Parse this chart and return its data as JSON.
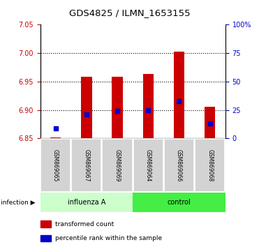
{
  "title": "GDS4825 / ILMN_1653155",
  "samples": [
    "GSM869065",
    "GSM869067",
    "GSM869069",
    "GSM869064",
    "GSM869066",
    "GSM869068"
  ],
  "group_labels": [
    "influenza A",
    "control"
  ],
  "bar_baseline": 6.85,
  "red_values": [
    6.852,
    6.958,
    6.958,
    6.963,
    7.002,
    6.906
  ],
  "blue_values": [
    6.867,
    6.892,
    6.898,
    6.9,
    6.916,
    6.876
  ],
  "ylim_left": [
    6.85,
    7.05
  ],
  "yticks_left": [
    6.85,
    6.9,
    6.95,
    7.0,
    7.05
  ],
  "ylim_right": [
    0,
    100
  ],
  "yticks_right": [
    0,
    25,
    50,
    75,
    100
  ],
  "ytick_labels_right": [
    "0",
    "25",
    "50",
    "75",
    "100%"
  ],
  "left_color": "#cc0000",
  "right_color": "#0000cc",
  "bar_color": "#cc0000",
  "dot_color": "#0000cc",
  "group_band_color_influenza": "#ccffcc",
  "group_band_color_control": "#44ee44",
  "grid_yticks": [
    6.9,
    6.95,
    7.0
  ],
  "legend_red": "transformed count",
  "legend_blue": "percentile rank within the sample",
  "bar_width": 0.35,
  "dot_size": 18
}
